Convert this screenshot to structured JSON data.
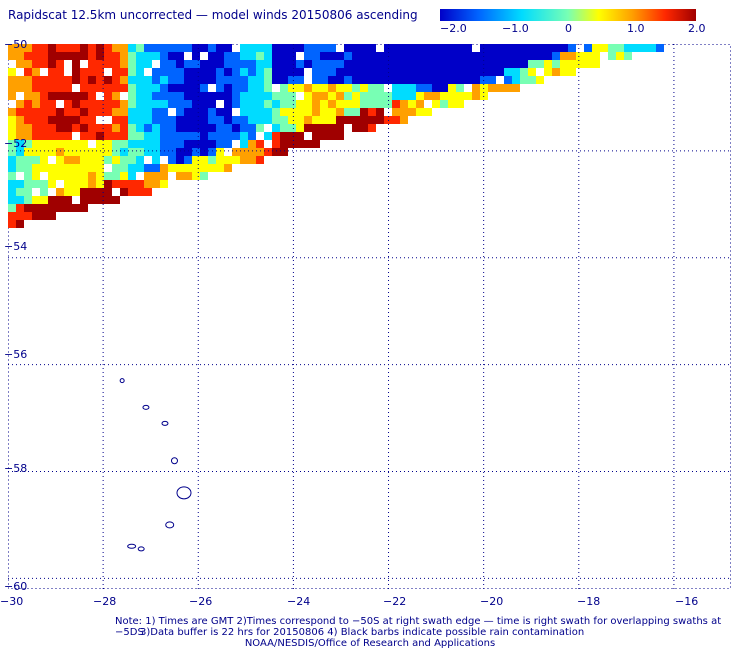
{
  "title": "Rapidscat 12.5km uncorrected — model winds 20150806 ascending",
  "colorbar": {
    "ticks": [
      "−2.0",
      "−1.0",
      "0",
      "1.0",
      "2.0"
    ],
    "colors": [
      "#0000c8",
      "#0064ff",
      "#00dcff",
      "#78ffb4",
      "#ffff00",
      "#ffa000",
      "#ff2800",
      "#a00000"
    ]
  },
  "map": {
    "lat_labels": [
      "−50",
      "−52",
      "−54",
      "−56",
      "−58",
      "−60"
    ],
    "lon_labels": [
      "−30",
      "−28",
      "−26",
      "−24",
      "−22",
      "−20",
      "−18",
      "−16"
    ],
    "lon_range": [
      -30,
      -14.8
    ],
    "lat_range": [
      -50,
      -60.2
    ],
    "grid_style": "dotted",
    "swath_top_right_lon": -17.2,
    "swath_lower_edge_left_lat": -53.2
  },
  "notes": {
    "line1": "Note: 1) Times are GMT 2)Times correspond to −50S at right swath edge — time is right swath for overlapping swaths at −5DS",
    "line2": "3)Data buffer is 22 hrs for 20150806 4) Black barbs indicate possible rain contamination",
    "line3": "NOAA/NESDIS/Office of Research and Applications"
  }
}
